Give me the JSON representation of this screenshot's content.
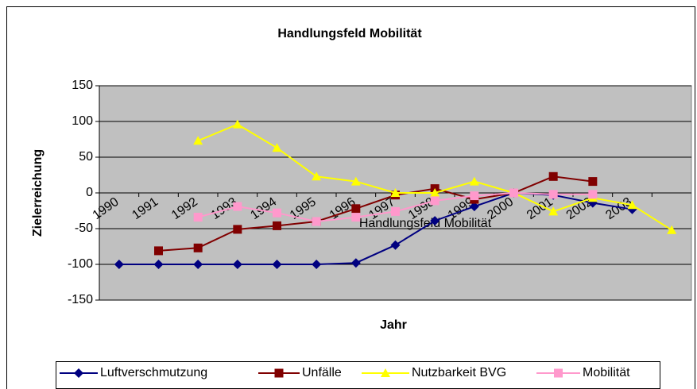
{
  "chart_data": {
    "type": "line",
    "title": "Handlungsfeld Mobilität",
    "x_label": "Jahr",
    "y_label": "Zielerreichung",
    "annotation": "Handlungsfeld Mobilität",
    "categories": [
      "1990",
      "1991",
      "1992",
      "1993",
      "1994",
      "1995",
      "1996",
      "1997",
      "1998",
      "1999",
      "2000",
      "2001",
      "2002",
      "2003",
      null
    ],
    "series": [
      {
        "name": "Luftverschmutzung",
        "color": "#000080",
        "marker": "diamond",
        "values": [
          -100,
          -100,
          -100,
          -100,
          -100,
          -100,
          -98,
          -73,
          -39,
          -19,
          0,
          -3,
          -14,
          -23,
          null
        ]
      },
      {
        "name": "Unfälle",
        "color": "#800000",
        "marker": "square",
        "values": [
          null,
          -81,
          -77,
          -51,
          -46,
          -40,
          -22,
          -3,
          6,
          -9,
          0,
          23,
          16,
          null,
          null
        ]
      },
      {
        "name": "Nutzbarkeit BVG",
        "color": "#FFFF00",
        "marker": "triangle",
        "values": [
          null,
          null,
          73,
          96,
          63,
          23,
          16,
          0,
          0,
          16,
          0,
          -26,
          -7,
          -17,
          -52
        ]
      },
      {
        "name": "Mobilität",
        "color": "#FF99CC",
        "marker": "square",
        "values": [
          null,
          null,
          -34,
          -19,
          -28,
          -40,
          -34,
          -26,
          -11,
          -4,
          0,
          -2,
          -2,
          null,
          null
        ]
      }
    ],
    "ylim": [
      -150,
      150
    ],
    "yticks": [
      -150,
      -100,
      -50,
      0,
      50,
      100,
      150
    ],
    "grid": true,
    "legend": "bottom"
  }
}
